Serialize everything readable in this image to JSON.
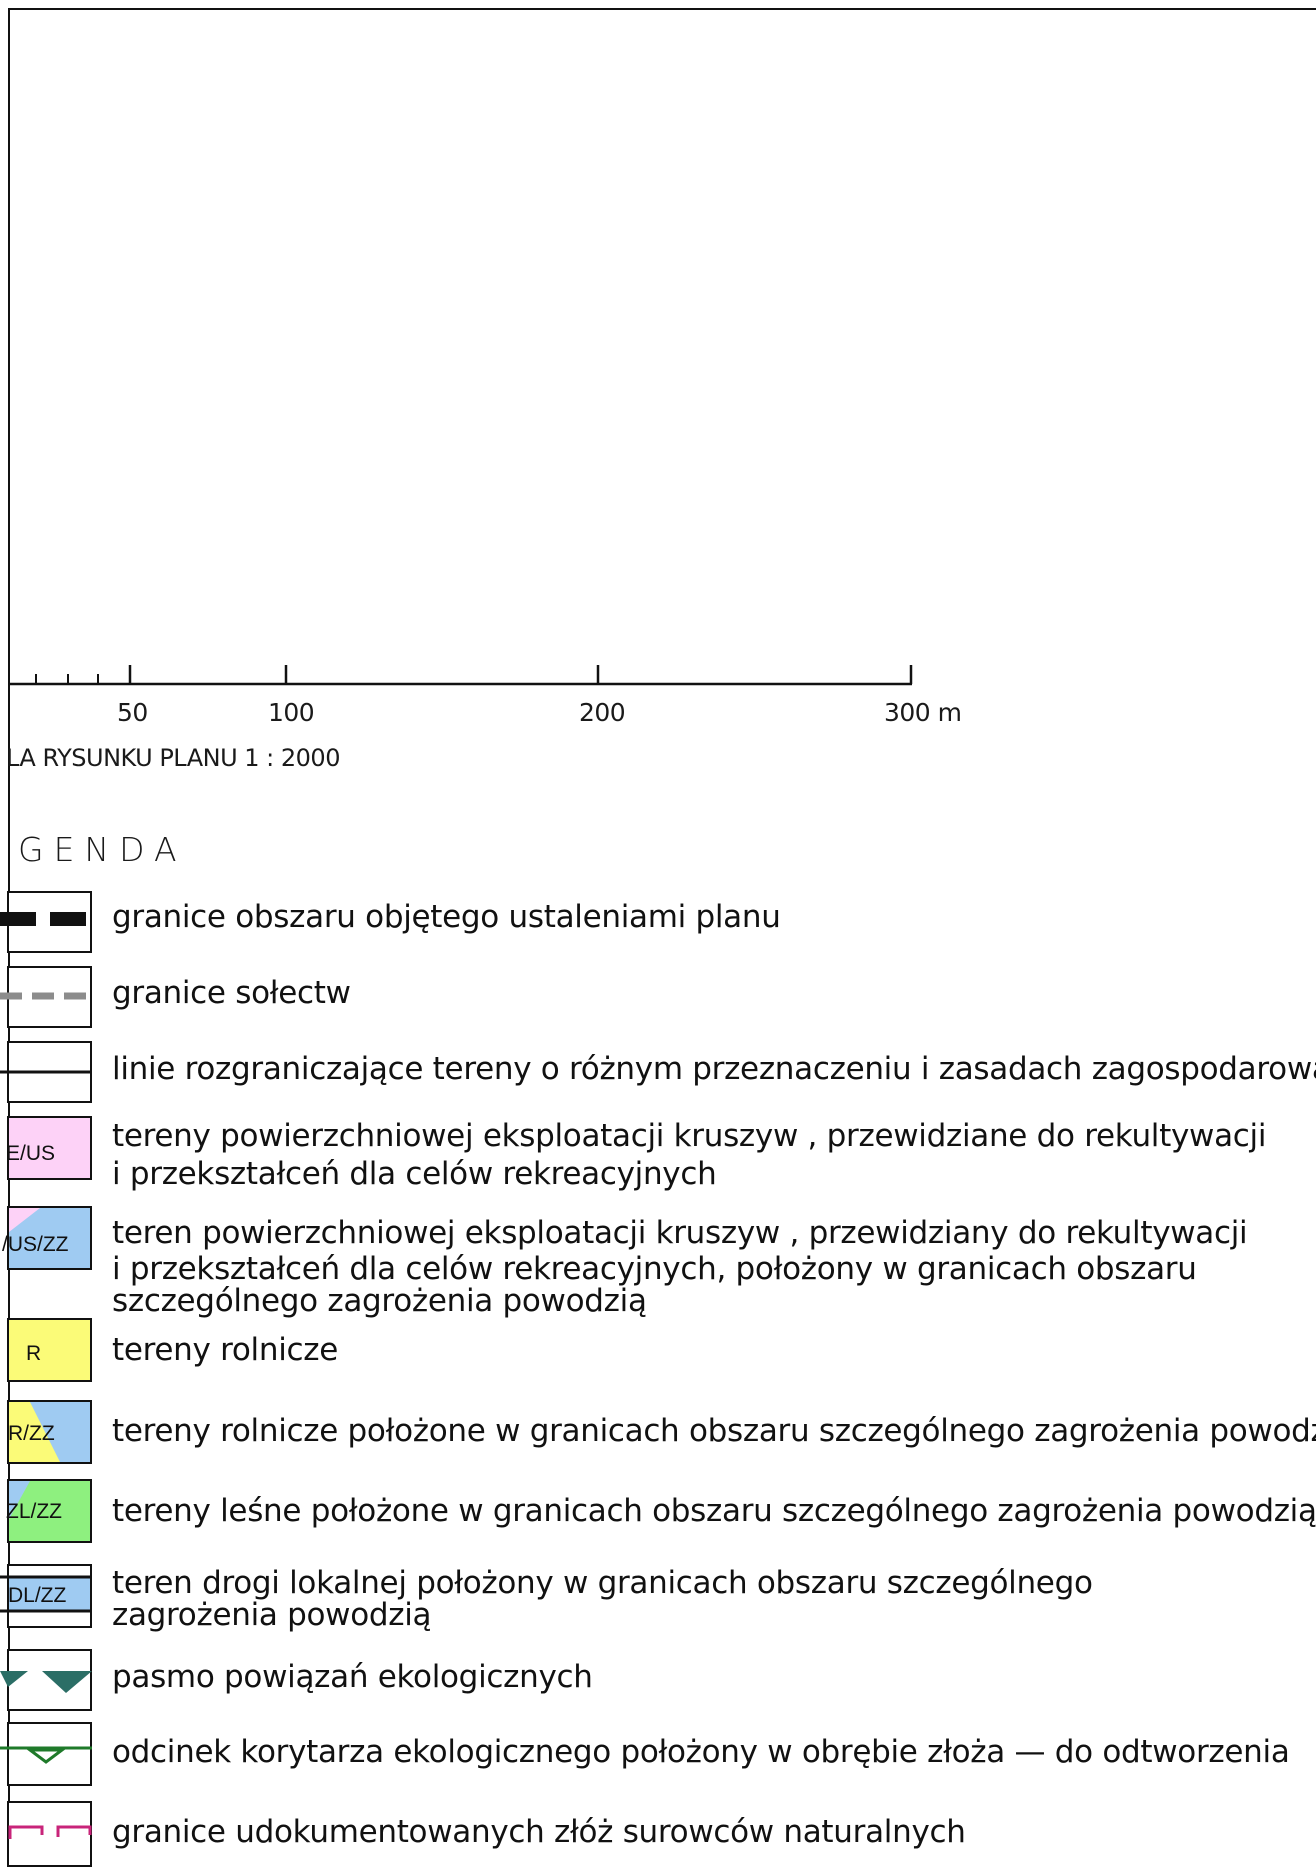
{
  "scale": {
    "ticks": [
      "50",
      "100",
      "200",
      "300 m"
    ],
    "caption": "LA RYSUNKU PLANU 1 : 2000"
  },
  "legend": {
    "title": "GENDA",
    "items": [
      {
        "code": "",
        "lines": [
          "granice obszaru objętego ustaleniami planu"
        ]
      },
      {
        "code": "",
        "lines": [
          "granice sołectw"
        ]
      },
      {
        "code": "",
        "lines": [
          "linie rozgraniczające tereny o różnym przeznaczeniu i zasadach zagospodarowania"
        ]
      },
      {
        "code": "E/US",
        "lines": [
          "tereny powierzchniowej eksploatacji kruszyw , przewidziane do rekultywacji",
          "i przekształceń dla celów rekreacyjnych"
        ]
      },
      {
        "code": "/US/ZZ",
        "lines": [
          "teren powierzchniowej eksploatacji kruszyw , przewidziany do rekultywacji",
          "i przekształceń dla celów rekreacyjnych, położony w granicach obszaru",
          "szczególnego zagrożenia powodzią"
        ]
      },
      {
        "code": "R",
        "lines": [
          "tereny rolnicze"
        ]
      },
      {
        "code": "R/ZZ",
        "lines": [
          "tereny rolnicze położone w granicach obszaru szczególnego zagrożenia powodzią"
        ]
      },
      {
        "code": "ZL/ZZ",
        "lines": [
          "tereny leśne położone w granicach obszaru szczególnego zagrożenia powodzią"
        ]
      },
      {
        "code": "DL/ZZ",
        "lines": [
          "teren drogi lokalnej  położony w granicach obszaru szczególnego",
          "zagrożenia powodzią"
        ]
      },
      {
        "code": "",
        "lines": [
          "pasmo powiązań ekologicznych"
        ]
      },
      {
        "code": "",
        "lines": [
          "odcinek korytarza ekologicznego położony  w obrębie złoża — do odtworzenia"
        ]
      },
      {
        "code": "",
        "lines": [
          "granice udokumentowanych złóż surowców naturalnych"
        ]
      }
    ]
  },
  "colors": {
    "pink": "#fdd2f7",
    "blue": "#9fcbf2",
    "yellow": "#fbfb78",
    "green": "#8ef07f",
    "teal": "#2b6e66",
    "darkgreen": "#1f7a2a",
    "magenta": "#c8247a",
    "grey": "#8c8c8c"
  }
}
